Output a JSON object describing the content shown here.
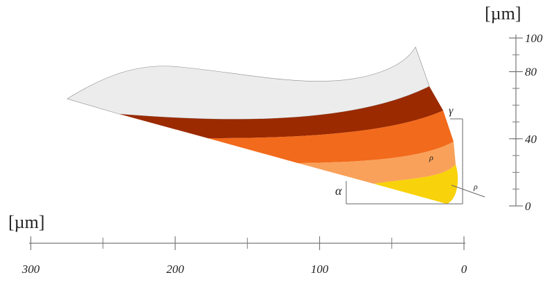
{
  "vertical_scale": {
    "unit": "[µm]",
    "ticks": [
      100,
      80,
      40,
      0
    ]
  },
  "horizontal_scale": {
    "unit": "[µm]",
    "ticks": [
      300,
      200,
      100,
      0
    ]
  },
  "annotations": {
    "alpha": "α",
    "gamma": "γ",
    "rho_1": "ρ",
    "rho_2": "ρ"
  }
}
